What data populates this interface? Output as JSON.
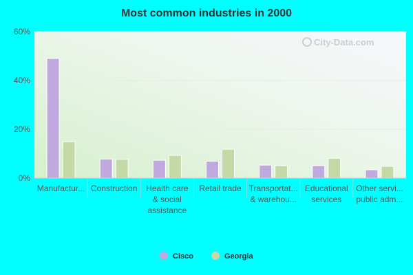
{
  "chart_data": {
    "type": "bar",
    "title": "Most common industries in 2000",
    "xlabel": "",
    "ylabel": "",
    "ylim": [
      0,
      60
    ],
    "yticks": [
      "0%",
      "20%",
      "40%",
      "60%"
    ],
    "ytick_values": [
      0,
      20,
      40,
      60
    ],
    "categories": [
      [
        "Manufactur..."
      ],
      [
        "Construction"
      ],
      [
        "Health care",
        "& social",
        "assistance"
      ],
      [
        "Retail trade"
      ],
      [
        "Transportat...",
        "& warehou..."
      ],
      [
        "Educational",
        "services"
      ],
      [
        "Other servi...",
        "public adm..."
      ]
    ],
    "series": [
      {
        "name": "Cisco",
        "color": "#c0a9dc",
        "values": [
          49.0,
          7.8,
          7.3,
          6.9,
          5.3,
          5.1,
          3.4
        ]
      },
      {
        "name": "Georgia",
        "color": "#c5d9a6",
        "values": [
          14.9,
          7.7,
          9.3,
          11.8,
          5.1,
          8.1,
          4.8
        ]
      }
    ],
    "grid": true,
    "legend_position": "bottom-center"
  },
  "watermark": "City-Data.com"
}
